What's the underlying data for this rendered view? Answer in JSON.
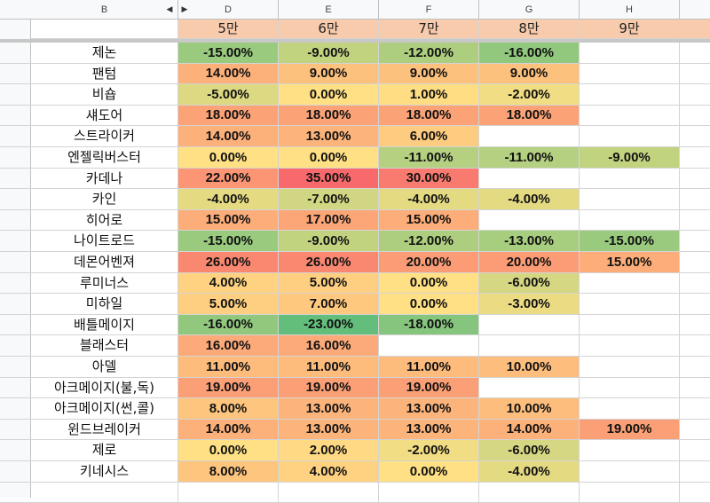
{
  "column_headers": [
    "B",
    "D",
    "E",
    "F",
    "G",
    "H"
  ],
  "tier_headers": [
    "5만",
    "6만",
    "7만",
    "8만",
    "9만"
  ],
  "rows": [
    {
      "name": "제논",
      "values": [
        "-15.00%",
        "-9.00%",
        "-12.00%",
        "-16.00%",
        null
      ]
    },
    {
      "name": "팬텀",
      "values": [
        "14.00%",
        "9.00%",
        "9.00%",
        "9.00%",
        null
      ]
    },
    {
      "name": "비숍",
      "values": [
        "-5.00%",
        "0.00%",
        "1.00%",
        "-2.00%",
        null
      ]
    },
    {
      "name": "섀도어",
      "values": [
        "18.00%",
        "18.00%",
        "18.00%",
        "18.00%",
        null
      ]
    },
    {
      "name": "스트라이커",
      "values": [
        "14.00%",
        "13.00%",
        "6.00%",
        null,
        null
      ]
    },
    {
      "name": "엔젤릭버스터",
      "values": [
        "0.00%",
        "0.00%",
        "-11.00%",
        "-11.00%",
        "-9.00%"
      ]
    },
    {
      "name": "카데나",
      "values": [
        "22.00%",
        "35.00%",
        "30.00%",
        null,
        null
      ]
    },
    {
      "name": "카인",
      "values": [
        "-4.00%",
        "-7.00%",
        "-4.00%",
        "-4.00%",
        null
      ]
    },
    {
      "name": "히어로",
      "values": [
        "15.00%",
        "17.00%",
        "15.00%",
        null,
        null
      ]
    },
    {
      "name": "나이트로드",
      "values": [
        "-15.00%",
        "-9.00%",
        "-12.00%",
        "-13.00%",
        "-15.00%"
      ]
    },
    {
      "name": "데몬어벤져",
      "values": [
        "26.00%",
        "26.00%",
        "20.00%",
        "20.00%",
        "15.00%"
      ]
    },
    {
      "name": "루미너스",
      "values": [
        "4.00%",
        "5.00%",
        "0.00%",
        "-6.00%",
        null
      ]
    },
    {
      "name": "미하일",
      "values": [
        "5.00%",
        "7.00%",
        "0.00%",
        "-3.00%",
        null
      ]
    },
    {
      "name": "배틀메이지",
      "values": [
        "-16.00%",
        "-23.00%",
        "-18.00%",
        null,
        null
      ]
    },
    {
      "name": "블래스터",
      "values": [
        "16.00%",
        "16.00%",
        null,
        null,
        null
      ]
    },
    {
      "name": "아델",
      "values": [
        "11.00%",
        "11.00%",
        "11.00%",
        "10.00%",
        null
      ]
    },
    {
      "name": "아크메이지(불,독)",
      "values": [
        "19.00%",
        "19.00%",
        "19.00%",
        null,
        null
      ]
    },
    {
      "name": "아크메이지(썬,콜)",
      "values": [
        "8.00%",
        "13.00%",
        "13.00%",
        "10.00%",
        null
      ]
    },
    {
      "name": "윈드브레이커",
      "values": [
        "14.00%",
        "13.00%",
        "13.00%",
        "14.00%",
        "19.00%"
      ]
    },
    {
      "name": "제로",
      "values": [
        "0.00%",
        "2.00%",
        "-2.00%",
        "-6.00%",
        null
      ]
    },
    {
      "name": "키네시스",
      "values": [
        "8.00%",
        "4.00%",
        "0.00%",
        "-4.00%",
        null
      ]
    }
  ],
  "colors": {
    "header_fill": "#f8cbad",
    "scale_min": "#63be7b",
    "scale_mid": "#ffe084",
    "scale_max": "#f8696b"
  }
}
